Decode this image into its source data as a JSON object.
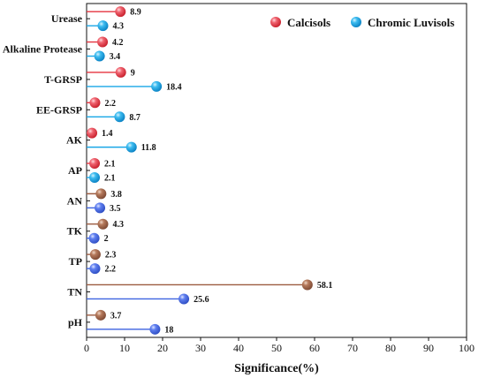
{
  "chart_data": {
    "type": "lollipop",
    "xlabel": "Significance(%)",
    "ylabel": "",
    "xlim": [
      0,
      100
    ],
    "xticks": [
      0,
      10,
      20,
      30,
      40,
      50,
      60,
      70,
      80,
      90,
      100
    ],
    "grid": false,
    "legend_position": "top-right",
    "categories": [
      "Urease",
      "Alkaline Protease",
      "T-GRSP",
      "EE-GRSP",
      "AK",
      "AP",
      "AN",
      "TK",
      "TP",
      "TN",
      "pH"
    ],
    "series": [
      {
        "name": "Calcisols",
        "color": "#e5333f",
        "values": [
          8.9,
          4.2,
          9,
          2.2,
          1.4,
          2.1,
          3.8,
          4.3,
          2.3,
          58.1,
          3.7
        ],
        "value_labels": [
          "8.9",
          "4.2",
          "9",
          "2.2",
          "1.4",
          "2.1",
          "3.8",
          "4.3",
          "2.3",
          "58.1",
          "3.7"
        ]
      },
      {
        "name": "Chromic Luvisols",
        "color": "#18a6e6",
        "values": [
          4.3,
          3.4,
          18.4,
          8.7,
          11.8,
          2.1,
          3.5,
          2,
          2.2,
          25.6,
          18
        ],
        "value_labels": [
          "4.3",
          "3.4",
          "18.4",
          "8.7",
          "11.8",
          "2.1",
          "3.5",
          "2",
          "2.2",
          "25.6",
          "18"
        ]
      }
    ]
  }
}
